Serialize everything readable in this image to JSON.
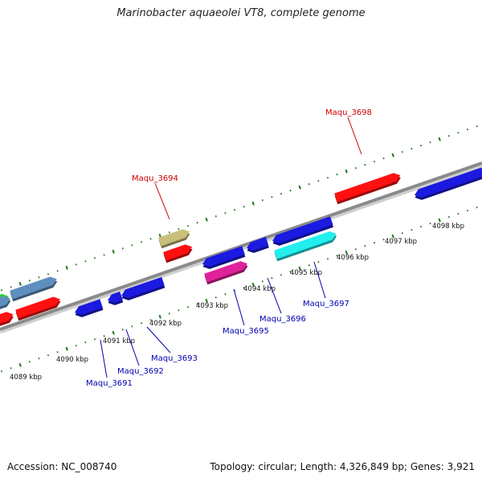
{
  "title": "Marinobacter aquaeolei VT8, complete genome",
  "footer": {
    "accession": "Accession: NC_008740",
    "stats": "Topology: circular; Length: 4,326,849 bp; Genes: 3,921"
  },
  "colors": {
    "backbone": "#8a8a8a",
    "tick_dots": "#1f7a1f",
    "label_red": "#cc0000",
    "label_blue": "#0000b0",
    "blue": "#1a1ae0",
    "red": "#ff1010",
    "tan": "#c8bf7a",
    "steel": "#5f8fbf",
    "green": "#33cc33",
    "magenta": "#e0229a",
    "cyan": "#22eeee"
  },
  "ticks": [
    "4089 kbp",
    "4090 kbp",
    "4091 kbp",
    "4092 kbp",
    "4093 kbp",
    "4094 kbp",
    "4095 kbp",
    "4096 kbp",
    "4097 kbp",
    "4098 kbp"
  ],
  "genes": [
    {
      "name": "Maqu_3691"
    },
    {
      "name": "Maqu_3692"
    },
    {
      "name": "Maqu_3693"
    },
    {
      "name": "Maqu_3694"
    },
    {
      "name": "Maqu_3695"
    },
    {
      "name": "Maqu_3696"
    },
    {
      "name": "Maqu_3697"
    },
    {
      "name": "Maqu_3698"
    }
  ]
}
